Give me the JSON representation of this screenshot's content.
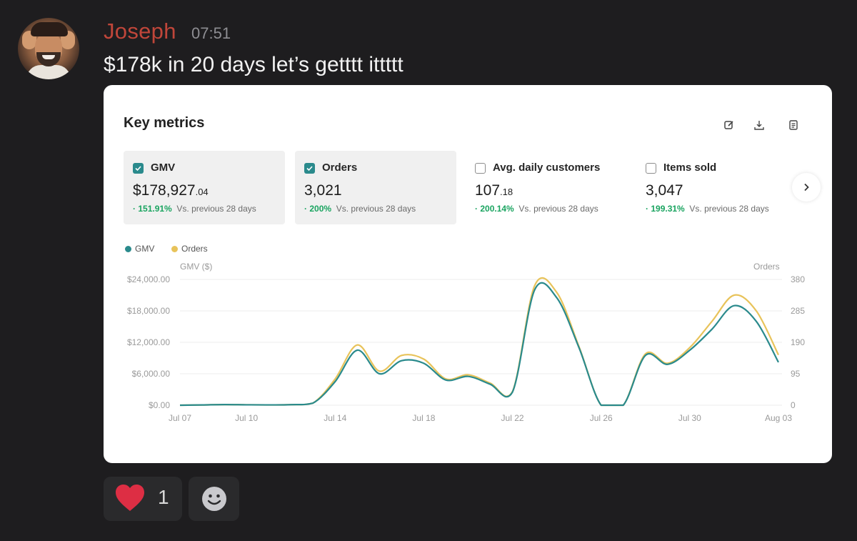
{
  "message": {
    "username": "Joseph",
    "timestamp": "07:51",
    "text": "$178k in 20 days let’s getttt ittttt",
    "avatar_icon": "user-avatar-photo"
  },
  "card": {
    "title": "Key metrics",
    "toolbar_icons": [
      "edit-icon",
      "download-icon",
      "report-icon"
    ],
    "metrics": [
      {
        "label": "GMV",
        "value": "$178,927",
        "decimals": ".04",
        "change": "151.91%",
        "compare": "Vs. previous 28 days",
        "checked": true
      },
      {
        "label": "Orders",
        "value": "3,021",
        "decimals": "",
        "change": "200%",
        "compare": "Vs. previous 28 days",
        "checked": true
      },
      {
        "label": "Avg. daily customers",
        "value": "107",
        "decimals": ".18",
        "change": "200.14%",
        "compare": "Vs. previous 28 days",
        "checked": false
      },
      {
        "label": "Items sold",
        "value": "3,047",
        "decimals": "",
        "change": "199.31%",
        "compare": "Vs. previous 28 days",
        "checked": false
      }
    ]
  },
  "colors": {
    "gmv": "#2a8a8c",
    "orders": "#e8c35a",
    "positive": "#1aa460",
    "username": "#c0463a"
  },
  "chart_data": {
    "type": "line",
    "legend": [
      "GMV",
      "Orders"
    ],
    "left_axis_title": "GMV ($)",
    "right_axis_title": "Orders",
    "left_ticks": [
      "$0.00",
      "$6,000.00",
      "$12,000.00",
      "$18,000.00",
      "$24,000.00"
    ],
    "right_ticks": [
      "0",
      "95",
      "190",
      "285",
      "380"
    ],
    "x_ticks": [
      "Jul 07",
      "Jul 10",
      "Jul 14",
      "Jul 18",
      "Jul 22",
      "Jul 26",
      "Jul 30",
      "Aug 03"
    ],
    "y_left_range": [
      0,
      24000
    ],
    "y_right_range": [
      0,
      380
    ],
    "x": [
      "Jul 07",
      "Jul 08",
      "Jul 09",
      "Jul 10",
      "Jul 11",
      "Jul 12",
      "Jul 13",
      "Jul 14",
      "Jul 15",
      "Jul 16",
      "Jul 17",
      "Jul 18",
      "Jul 19",
      "Jul 20",
      "Jul 21",
      "Jul 22",
      "Jul 23",
      "Jul 24",
      "Jul 25",
      "Jul 26",
      "Jul 27",
      "Jul 28",
      "Jul 29",
      "Jul 30",
      "Jul 31",
      "Aug 01",
      "Aug 02",
      "Aug 03"
    ],
    "series": [
      {
        "name": "GMV",
        "axis": "left",
        "values": [
          0,
          50,
          120,
          80,
          60,
          100,
          400,
          4500,
          10500,
          6000,
          8500,
          8000,
          4800,
          5500,
          4000,
          2500,
          22000,
          20500,
          11000,
          0,
          0,
          9500,
          7800,
          10500,
          14500,
          19000,
          16000,
          8200
        ]
      },
      {
        "name": "Orders",
        "axis": "left",
        "values": [
          0,
          50,
          120,
          80,
          60,
          100,
          400,
          5000,
          11500,
          6500,
          9500,
          8800,
          5000,
          5800,
          4200,
          2600,
          22800,
          21500,
          11200,
          0,
          0,
          9800,
          8000,
          11000,
          16000,
          21000,
          18000,
          9600
        ]
      }
    ]
  },
  "reactions": [
    {
      "emoji": "heart-icon",
      "count": "1"
    },
    {
      "emoji": "add-reaction-icon",
      "count": ""
    }
  ]
}
